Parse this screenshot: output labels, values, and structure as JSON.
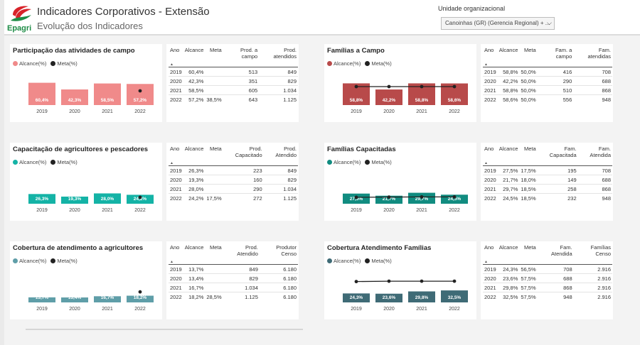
{
  "header": {
    "logo_text": "Epagri",
    "title": "Indicadores Corporativos - Extensão",
    "subtitle": "Evolução dos Indicadores",
    "org_label": "Unidade organizacional",
    "org_value": "Canoinhas (GR) (Gerencia Regional) + ..."
  },
  "legend": {
    "alcance": "Alcance(%)",
    "meta": "Meta(%)"
  },
  "sort_glyph": "▲",
  "charts": [
    {
      "title": "Participação das atividades de campo",
      "color": "#f08a8a",
      "meta_line": false,
      "chart_data": {
        "type": "bar",
        "categories": [
          "2019",
          "2020",
          "2021",
          "2022"
        ],
        "labels": [
          "60,4%",
          "42,3%",
          "58,5%",
          "57,2%"
        ],
        "series": [
          {
            "name": "Alcance(%)",
            "values": [
              60.4,
              42.3,
              58.5,
              57.2
            ]
          },
          {
            "name": "Meta(%)",
            "values": [
              null,
              null,
              null,
              38.5
            ]
          }
        ]
      }
    },
    {
      "title": "Famílias a Campo",
      "color": "#b84a4a",
      "meta_line": true,
      "chart_data": {
        "type": "bar",
        "categories": [
          "2019",
          "2020",
          "2021",
          "2022"
        ],
        "labels": [
          "58,8%",
          "42,2%",
          "58,8%",
          "58,6%"
        ],
        "series": [
          {
            "name": "Alcance(%)",
            "values": [
              58.8,
              42.2,
              58.8,
              58.6
            ]
          },
          {
            "name": "Meta(%)",
            "values": [
              50.0,
              50.0,
              50.0,
              50.0
            ]
          }
        ]
      }
    },
    {
      "title": "Capacitação de agricultores e pescadores",
      "color": "#14b3a6",
      "meta_line": false,
      "chart_data": {
        "type": "bar",
        "categories": [
          "2019",
          "2020",
          "2021",
          "2022"
        ],
        "labels": [
          "26,3%",
          "19,3%",
          "28,0%",
          "24,2%"
        ],
        "series": [
          {
            "name": "Alcance(%)",
            "values": [
              26.3,
              19.3,
              28.0,
              24.2
            ]
          },
          {
            "name": "Meta(%)",
            "values": [
              null,
              null,
              null,
              17.5
            ]
          }
        ]
      }
    },
    {
      "title": "Famílias Capacitadas",
      "color": "#118c80",
      "meta_line": true,
      "chart_data": {
        "type": "bar",
        "categories": [
          "2019",
          "2020",
          "2021",
          "2022"
        ],
        "labels": [
          "27,5%",
          "21,7%",
          "29,7%",
          "24,5%"
        ],
        "series": [
          {
            "name": "Alcance(%)",
            "values": [
              27.5,
              21.7,
              29.7,
              24.5
            ]
          },
          {
            "name": "Meta(%)",
            "values": [
              17.5,
              18.0,
              18.5,
              18.5
            ]
          }
        ]
      }
    },
    {
      "title": "Cobertura de atendimento a agricultores",
      "color": "#5f9ea8",
      "meta_line": false,
      "chart_data": {
        "type": "bar",
        "categories": [
          "2019",
          "2020",
          "2021",
          "2022"
        ],
        "labels": [
          "13,7%",
          "13,4%",
          "16,7%",
          "18,2%"
        ],
        "series": [
          {
            "name": "Alcance(%)",
            "values": [
              13.7,
              13.4,
              16.7,
              18.2
            ]
          },
          {
            "name": "Meta(%)",
            "values": [
              null,
              null,
              null,
              28.5
            ]
          }
        ]
      }
    },
    {
      "title": "Cobertura Atendimento Famílias",
      "color": "#3f6b76",
      "meta_line": true,
      "chart_data": {
        "type": "bar",
        "categories": [
          "2019",
          "2020",
          "2021",
          "2022"
        ],
        "labels": [
          "24,3%",
          "23,6%",
          "29,8%",
          "32,5%"
        ],
        "series": [
          {
            "name": "Alcance(%)",
            "values": [
              24.3,
              23.6,
              29.8,
              32.5
            ]
          },
          {
            "name": "Meta(%)",
            "values": [
              56.5,
              57.5,
              57.5,
              57.5
            ]
          }
        ]
      }
    }
  ],
  "tables": [
    {
      "headers": [
        "Ano",
        "Alcance",
        "Meta",
        "Prod. a campo",
        "Prod. atendidos"
      ],
      "rows": [
        [
          "2019",
          "60,4%",
          "",
          "513",
          "849"
        ],
        [
          "2020",
          "42,3%",
          "",
          "351",
          "829"
        ],
        [
          "2021",
          "58,5%",
          "",
          "605",
          "1.034"
        ],
        [
          "2022",
          "57,2%",
          "38,5%",
          "643",
          "1.125"
        ]
      ]
    },
    {
      "headers": [
        "Ano",
        "Alcance",
        "Meta",
        "Fam. a campo",
        "Fam. atendidas"
      ],
      "rows": [
        [
          "2019",
          "58,8%",
          "50,0%",
          "416",
          "708"
        ],
        [
          "2020",
          "42,2%",
          "50,0%",
          "290",
          "688"
        ],
        [
          "2021",
          "58,8%",
          "50,0%",
          "510",
          "868"
        ],
        [
          "2022",
          "58,6%",
          "50,0%",
          "556",
          "948"
        ]
      ]
    },
    {
      "headers": [
        "Ano",
        "Alcance",
        "Meta",
        "Prod. Capacitado",
        "Prod. Atendido"
      ],
      "rows": [
        [
          "2019",
          "26,3%",
          "",
          "223",
          "849"
        ],
        [
          "2020",
          "19,3%",
          "",
          "160",
          "829"
        ],
        [
          "2021",
          "28,0%",
          "",
          "290",
          "1.034"
        ],
        [
          "2022",
          "24,2%",
          "17,5%",
          "272",
          "1.125"
        ]
      ]
    },
    {
      "headers": [
        "Ano",
        "Alcance",
        "Meta",
        "Fam. Capacitada",
        "Fam. Atendida"
      ],
      "rows": [
        [
          "2019",
          "27,5%",
          "17,5%",
          "195",
          "708"
        ],
        [
          "2020",
          "21,7%",
          "18,0%",
          "149",
          "688"
        ],
        [
          "2021",
          "29,7%",
          "18,5%",
          "258",
          "868"
        ],
        [
          "2022",
          "24,5%",
          "18,5%",
          "232",
          "948"
        ]
      ]
    },
    {
      "headers": [
        "Ano",
        "Alcance",
        "Meta",
        "Prod. Atendido",
        "Produtor Censo"
      ],
      "rows": [
        [
          "2019",
          "13,7%",
          "",
          "849",
          "6.180"
        ],
        [
          "2020",
          "13,4%",
          "",
          "829",
          "6.180"
        ],
        [
          "2021",
          "16,7%",
          "",
          "1.034",
          "6.180"
        ],
        [
          "2022",
          "18,2%",
          "28,5%",
          "1.125",
          "6.180"
        ]
      ]
    },
    {
      "headers": [
        "Ano",
        "Alcance",
        "Meta",
        "Fam. Atendida",
        "Famílias Censo"
      ],
      "rows": [
        [
          "2019",
          "24,3%",
          "56,5%",
          "708",
          "2.916"
        ],
        [
          "2020",
          "23,6%",
          "57,5%",
          "688",
          "2.916"
        ],
        [
          "2021",
          "29,8%",
          "57,5%",
          "868",
          "2.916"
        ],
        [
          "2022",
          "32,5%",
          "57,5%",
          "948",
          "2.916"
        ]
      ]
    }
  ]
}
